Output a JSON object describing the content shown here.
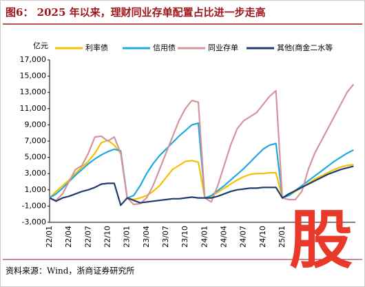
{
  "chart_data": {
    "type": "line",
    "title": "图6： 2025 年以来，理财同业存单配置占比进一步走高",
    "y_unit": "亿元",
    "source": "资料来源：Wind，浙商证券研究所",
    "logo": "股",
    "categories": [
      "22/01",
      null,
      null,
      "22/04",
      null,
      null,
      "22/07",
      null,
      null,
      "22/10",
      null,
      null,
      "23/01",
      null,
      null,
      "23/04",
      null,
      null,
      "23/07",
      null,
      null,
      "23/10",
      null,
      null,
      "24/01",
      null,
      null,
      "24/04",
      null,
      null,
      "24/07",
      null,
      null,
      "24/10",
      null,
      null,
      "25/01",
      null,
      null,
      null,
      null,
      null,
      null,
      null,
      null,
      null,
      null,
      null
    ],
    "series": [
      {
        "name": "利率债",
        "color": "#f5c000",
        "values": [
          0,
          800,
          1500,
          2200,
          3000,
          3800,
          4500,
          5500,
          6800,
          7100,
          6500,
          5500,
          0,
          -200,
          0,
          300,
          800,
          1500,
          2500,
          3500,
          4000,
          4500,
          4600,
          4400,
          0,
          200,
          700,
          1200,
          1700,
          2200,
          2600,
          2900,
          3000,
          3000,
          3100,
          3100,
          0,
          300,
          800,
          1300,
          1800,
          2300,
          2700,
          3100,
          3500,
          3800,
          4000,
          4100
        ]
      },
      {
        "name": "信用债",
        "color": "#1fa8e0",
        "values": [
          0,
          500,
          1200,
          2000,
          2800,
          3500,
          4200,
          4800,
          5300,
          5700,
          6000,
          5800,
          0,
          300,
          1500,
          3000,
          4200,
          5200,
          6000,
          6800,
          7600,
          8300,
          9000,
          9200,
          0,
          300,
          900,
          1500,
          2200,
          2900,
          3600,
          4400,
          5200,
          6000,
          6500,
          6700,
          0,
          300,
          900,
          1500,
          2100,
          2700,
          3300,
          3900,
          4500,
          5000,
          5500,
          5900
        ]
      },
      {
        "name": "同业存单",
        "color": "#d4949a",
        "values": [
          0,
          -300,
          500,
          2000,
          3500,
          4000,
          5500,
          7500,
          7600,
          7000,
          7500,
          5500,
          0,
          -800,
          -700,
          0,
          1500,
          3500,
          5500,
          7500,
          9500,
          11000,
          12000,
          11800,
          0,
          -500,
          1500,
          4000,
          6500,
          8500,
          9500,
          10000,
          10500,
          11500,
          12500,
          13200,
          0,
          -200,
          -200,
          800,
          3500,
          5500,
          7000,
          8500,
          10000,
          11500,
          13000,
          14000
        ]
      },
      {
        "name": "其他(商金二水等",
        "color": "#1f3a6b",
        "values": [
          0,
          -400,
          0,
          200,
          500,
          800,
          1000,
          1300,
          1700,
          1800,
          1800,
          -900,
          0,
          -300,
          -600,
          -500,
          -400,
          -300,
          -200,
          -100,
          -100,
          0,
          100,
          0,
          0,
          0,
          200,
          500,
          800,
          1000,
          1100,
          1200,
          1200,
          1300,
          1300,
          1300,
          0,
          500,
          900,
          1300,
          1700,
          2100,
          2500,
          2900,
          3200,
          3500,
          3700,
          3900
        ]
      }
    ],
    "ylim": [
      -3000,
      17000
    ],
    "yticks": [
      {
        "value": -3000,
        "label": "-3,000"
      },
      {
        "value": -1000,
        "label": "-1,000"
      },
      {
        "value": 1000,
        "label": "1,000"
      },
      {
        "value": 3000,
        "label": "3,000"
      },
      {
        "value": 5000,
        "label": "5,000"
      },
      {
        "value": 7000,
        "label": "7,000"
      },
      {
        "value": 9000,
        "label": "9,000"
      },
      {
        "value": 11000,
        "label": "11,000"
      },
      {
        "value": 13000,
        "label": "13,000"
      },
      {
        "value": 15000,
        "label": "15,000"
      },
      {
        "value": 17000,
        "label": "17,000"
      }
    ],
    "grid": false,
    "legend": "top"
  }
}
